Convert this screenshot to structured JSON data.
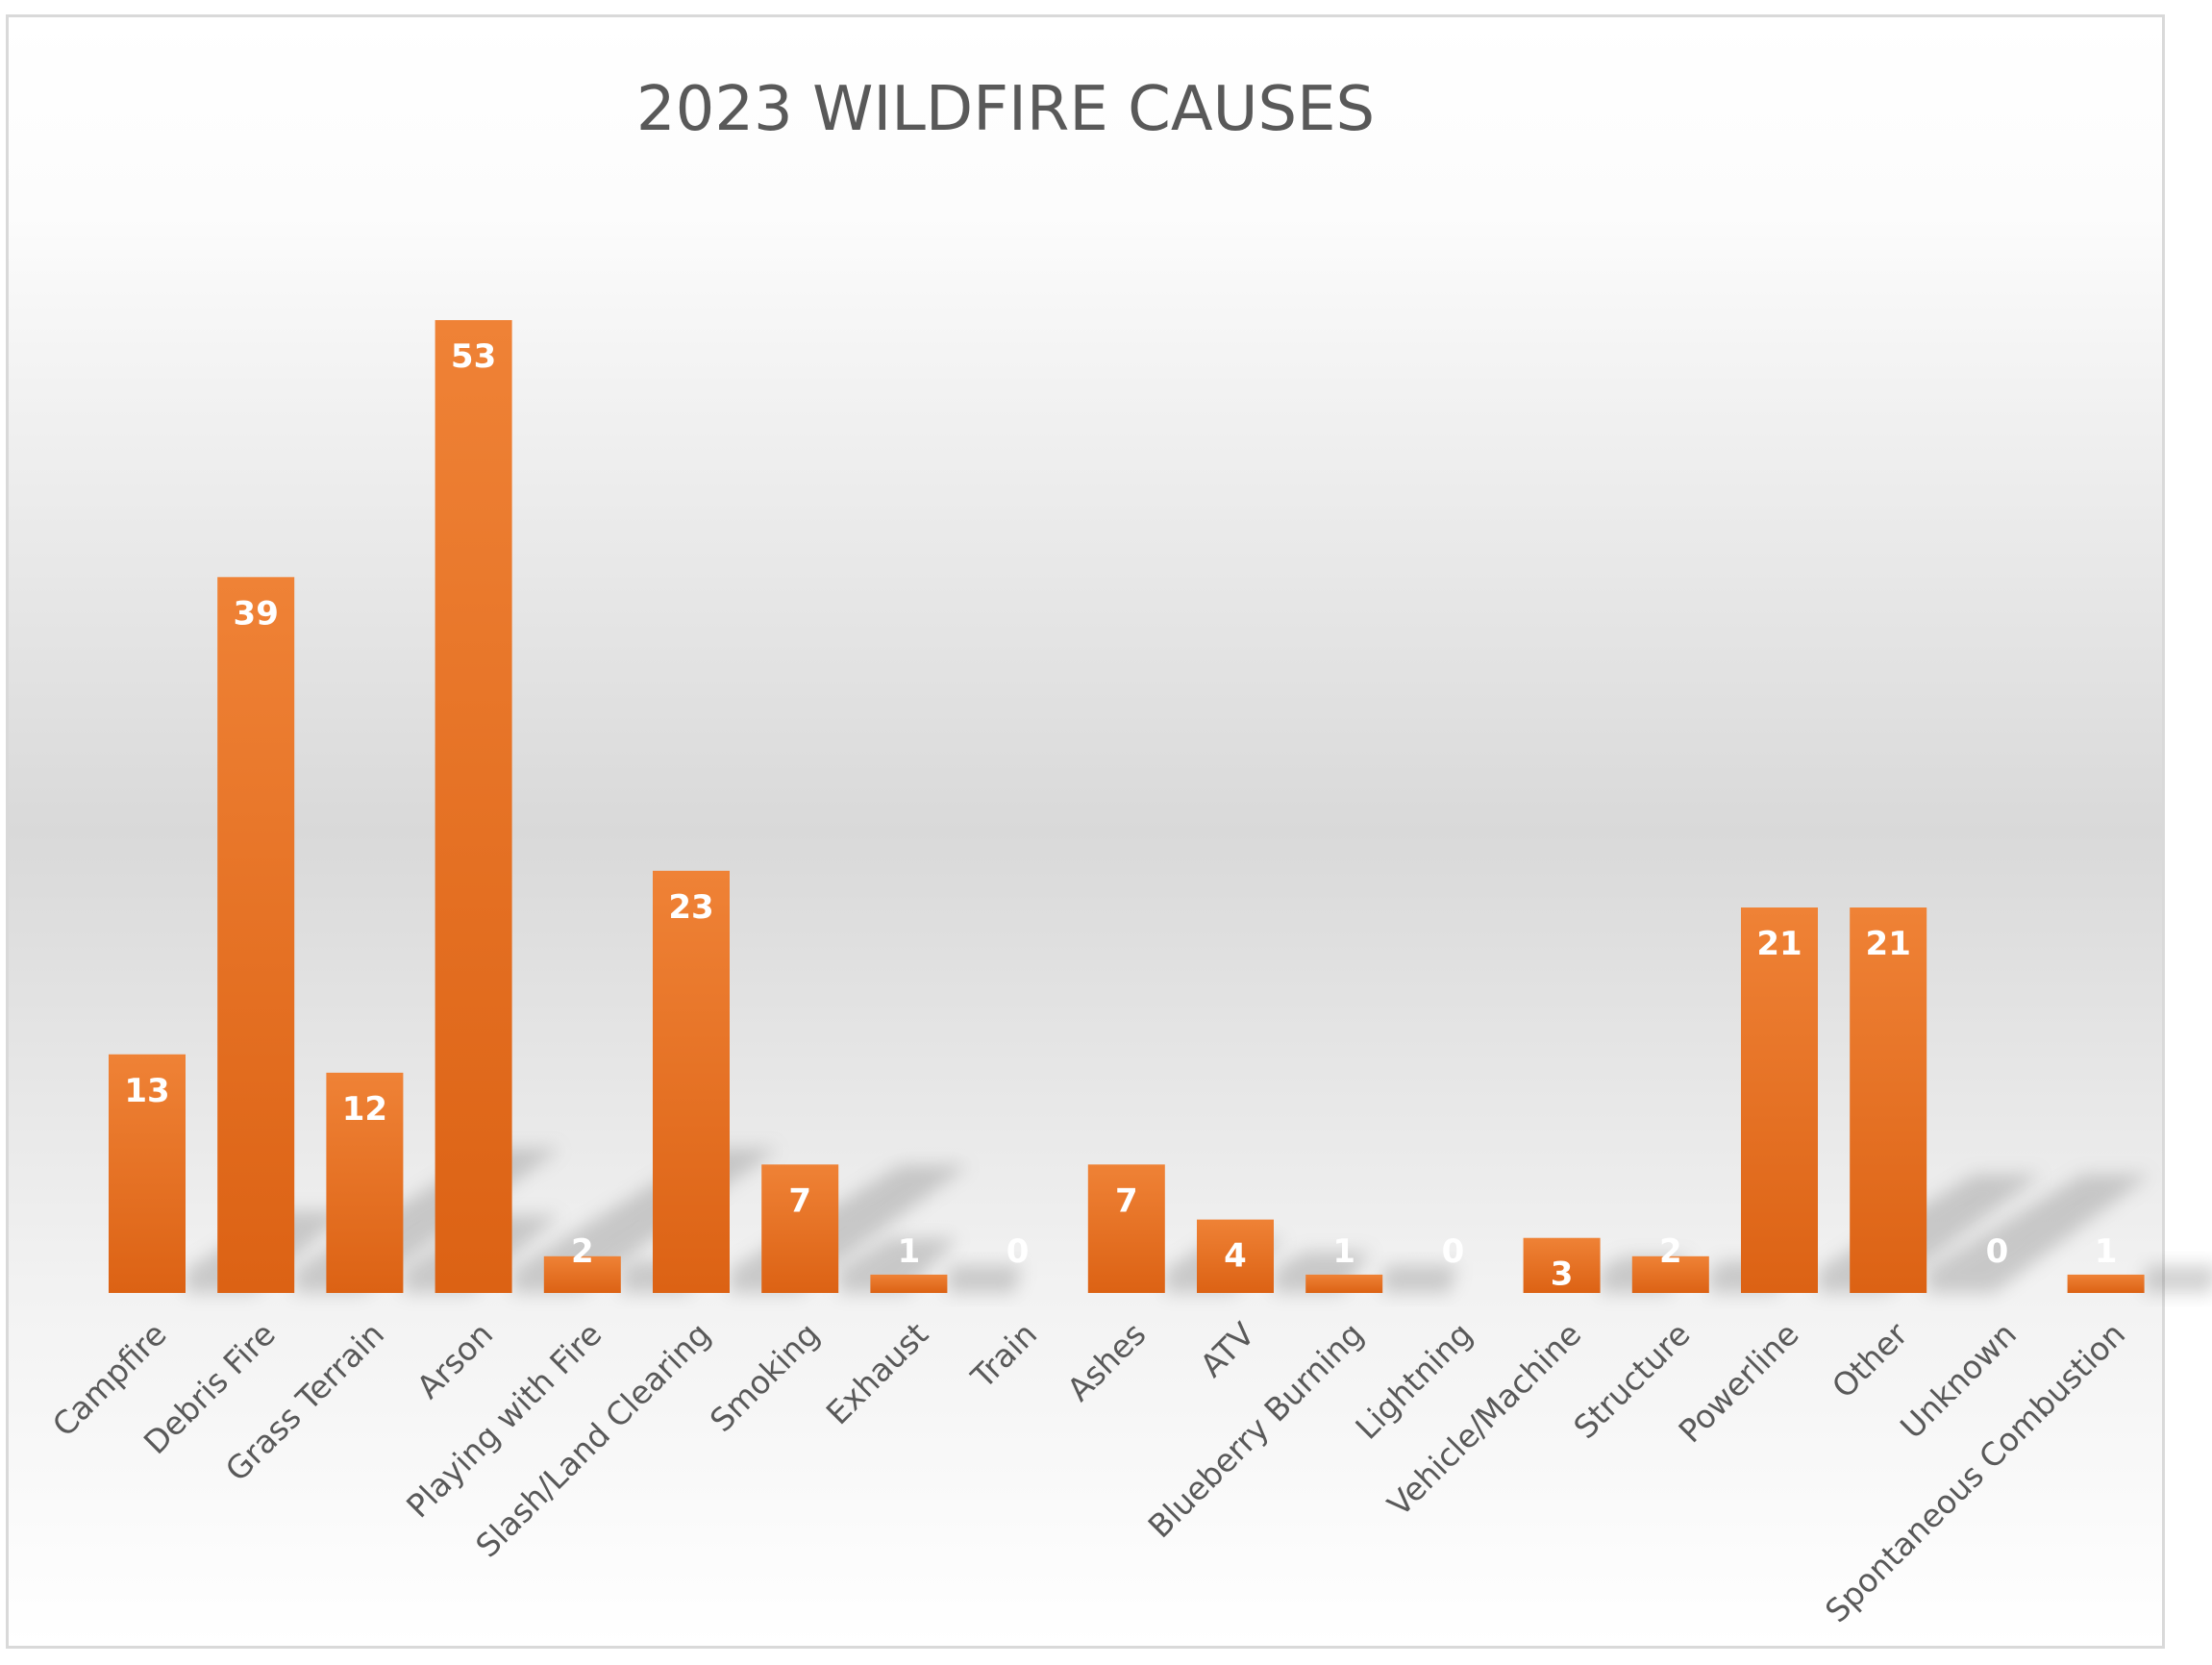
{
  "chart_data": {
    "type": "bar",
    "title": "2023 WILDFIRE CAUSES",
    "xlabel": "",
    "ylabel": "",
    "categories": [
      "Campfire",
      "Debris Fire",
      "Grass Terrain",
      "Arson",
      "Playing with Fire",
      "Slash/Land Clearing",
      "Smoking",
      "Exhaust",
      "Train",
      "Ashes",
      "ATV",
      "Blueberry Burning",
      "Lightning",
      "Vehicle/Machine",
      "Structure",
      "Powerline",
      "Other",
      "Unknown",
      "Spontaneous Combustion"
    ],
    "values": [
      13,
      39,
      12,
      53,
      2,
      23,
      7,
      1,
      0,
      7,
      4,
      1,
      0,
      3,
      2,
      21,
      21,
      0,
      1
    ],
    "ylim": [
      0,
      60
    ],
    "grid": false,
    "legend": "none",
    "data_labels": true,
    "bar_color_top": "#ef8236",
    "bar_color_bottom": "#dc6214",
    "background_top": "#ffffff",
    "background_mid": "#d9d9d9",
    "label_color": "#595959"
  }
}
